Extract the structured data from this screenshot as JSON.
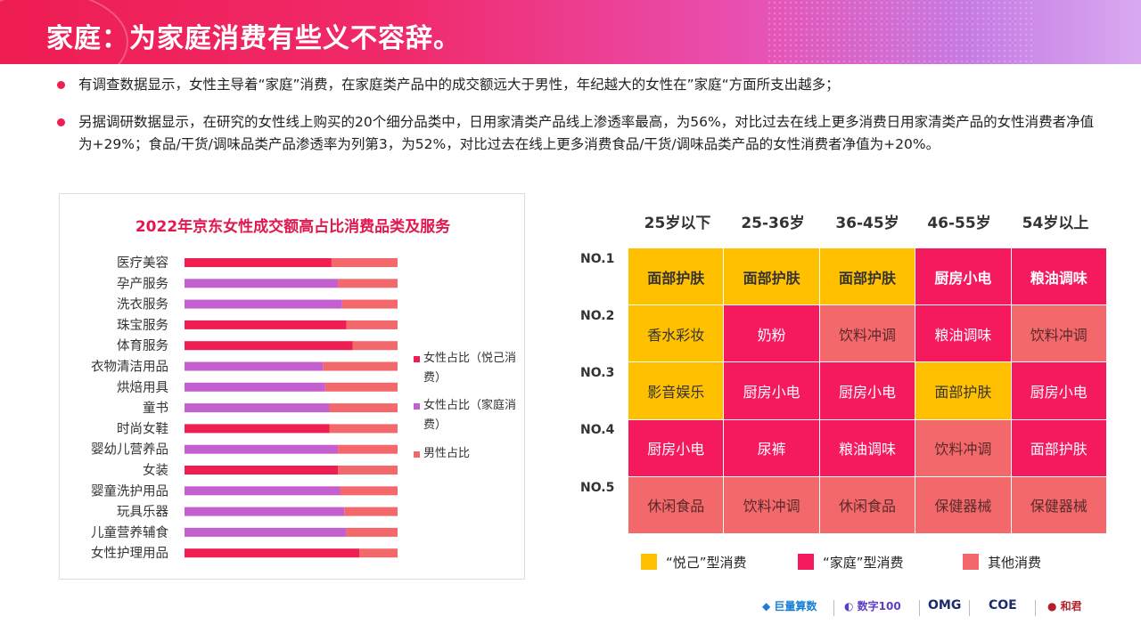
{
  "header": {
    "title": "家庭：为家庭消费有些义不容辞。"
  },
  "bullets": [
    "有调查数据显示，女性主导着“家庭”消费，在家庭类产品中的成交额远大于男性，年纪越大的女性在”家庭“方面所支出越多；",
    "另据调研数据显示，在研究的女性线上购买的20个细分品类中，日用家清类产品线上渗透率最高，为56%，对比过去在线上更多消费日用家清类产品的女性消费者净值为+29%；食品/干货/调味品类产品渗透率为列第3，为52%，对比过去在线上更多消费食品/干货/调味品类产品的女性消费者净值为+20%。"
  ],
  "chart_data": {
    "type": "bar",
    "orientation": "horizontal",
    "stacked": true,
    "title": "2022年京东女性成交额高占比消费品类及服务",
    "categories": [
      "医疗美容",
      "孕产服务",
      "洗衣服务",
      "珠宝服务",
      "体育服务",
      "衣物清洁用品",
      "烘焙用具",
      "童书",
      "时尚女鞋",
      "婴幼儿营养品",
      "女装",
      "婴童洗护用品",
      "玩具乐器",
      "儿童营养辅食",
      "女性护理用品"
    ],
    "series": [
      {
        "name": "女性占比（悦己消费）",
        "color": "#ee1d52",
        "values": [
          0.69,
          0,
          0,
          0.76,
          0.79,
          0,
          0,
          0,
          0.68,
          0,
          0.72,
          0,
          0,
          0,
          0.82
        ]
      },
      {
        "name": "女性占比（家庭消费）",
        "color": "#c45fcf",
        "values": [
          0,
          0.72,
          0.74,
          0,
          0,
          0.65,
          0.66,
          0.68,
          0,
          0.72,
          0,
          0.73,
          0.75,
          0.76,
          0
        ]
      },
      {
        "name": "男性占比",
        "color": "#f2686b",
        "values": [
          0.31,
          0.28,
          0.26,
          0.24,
          0.21,
          0.35,
          0.34,
          0.32,
          0.32,
          0.28,
          0.28,
          0.27,
          0.25,
          0.24,
          0.18
        ]
      }
    ],
    "xlim": [
      0,
      1
    ],
    "legend_position": "right"
  },
  "matrix": {
    "columns": [
      "25岁以下",
      "25-36岁",
      "36-45岁",
      "46-55岁",
      "54岁以上"
    ],
    "rows": [
      {
        "label": "NO.1",
        "cells": [
          {
            "text": "面部护肤",
            "type": "yue"
          },
          {
            "text": "面部护肤",
            "type": "yue"
          },
          {
            "text": "面部护肤",
            "type": "yue"
          },
          {
            "text": "厨房小电",
            "type": "jia"
          },
          {
            "text": "粮油调味",
            "type": "jia"
          }
        ]
      },
      {
        "label": "NO.2",
        "cells": [
          {
            "text": "香水彩妆",
            "type": "yue"
          },
          {
            "text": "奶粉",
            "type": "jia"
          },
          {
            "text": "饮料冲调",
            "type": "qt"
          },
          {
            "text": "粮油调味",
            "type": "jia"
          },
          {
            "text": "饮料冲调",
            "type": "qt"
          }
        ]
      },
      {
        "label": "NO.3",
        "cells": [
          {
            "text": "影音娱乐",
            "type": "yue"
          },
          {
            "text": "厨房小电",
            "type": "jia"
          },
          {
            "text": "厨房小电",
            "type": "jia"
          },
          {
            "text": "面部护肤",
            "type": "yue"
          },
          {
            "text": "厨房小电",
            "type": "jia"
          }
        ]
      },
      {
        "label": "NO.4",
        "cells": [
          {
            "text": "厨房小电",
            "type": "jia"
          },
          {
            "text": "尿裤",
            "type": "jia"
          },
          {
            "text": "粮油调味",
            "type": "jia"
          },
          {
            "text": "饮料冲调",
            "type": "qt"
          },
          {
            "text": "面部护肤",
            "type": "jia"
          }
        ]
      },
      {
        "label": "NO.5",
        "cells": [
          {
            "text": "休闲食品",
            "type": "qt"
          },
          {
            "text": "饮料冲调",
            "type": "qt"
          },
          {
            "text": "休闲食品",
            "type": "qt"
          },
          {
            "text": "保健器械",
            "type": "qt"
          },
          {
            "text": "保健器械",
            "type": "qt"
          }
        ]
      }
    ],
    "legend": [
      {
        "label": "“悦己”型消费",
        "color": "#ffc000"
      },
      {
        "label": "“家庭”型消费",
        "color": "#f5195d"
      },
      {
        "label": "其他消费",
        "color": "#f2686b"
      }
    ]
  },
  "footer": {
    "logos": [
      "巨量算数",
      "数字100",
      "OMG",
      "COE",
      "和君"
    ]
  }
}
